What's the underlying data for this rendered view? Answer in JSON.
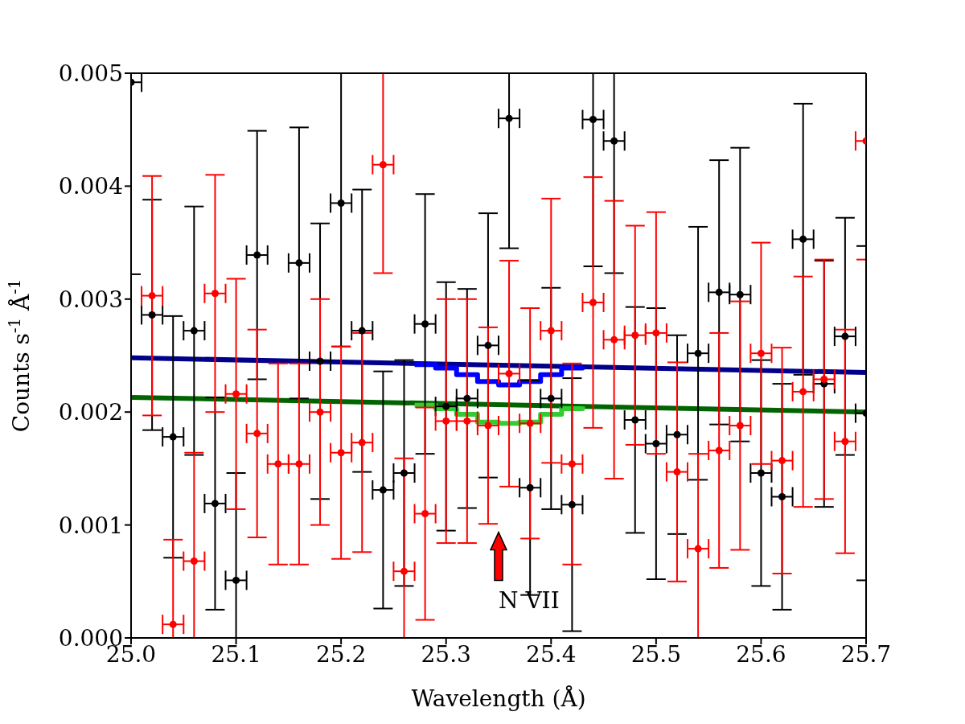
{
  "chart_data": {
    "type": "scatter",
    "xlabel": "Wavelength (Å)",
    "ylabel": "Counts s$^{-1}$ Å$^{-1}$",
    "annotations": [
      "N VII"
    ],
    "x": [
      25.0,
      25.02,
      25.04,
      25.06,
      25.08,
      25.1,
      25.12,
      25.14,
      25.16,
      25.18,
      25.2,
      25.22,
      25.24,
      25.26,
      25.28,
      25.3,
      25.32,
      25.34,
      25.36,
      25.38,
      25.4,
      25.42,
      25.44,
      25.46,
      25.48,
      25.5,
      25.52,
      25.54,
      25.56,
      25.58,
      25.6,
      25.62,
      25.64,
      25.66,
      25.68,
      25.7
    ],
    "series": [
      {
        "color": "#000000",
        "marker": "circle",
        "values": [
          0.00492,
          0.00286,
          0.00178,
          0.00272,
          0.00119,
          0.00051,
          0.00339,
          null,
          0.00332,
          0.00245,
          0.00385,
          0.00272,
          0.00131,
          0.00146,
          0.00278,
          0.00205,
          0.00212,
          0.00259,
          0.0046,
          0.00133,
          0.00212,
          0.00118,
          0.00459,
          0.0044,
          0.00193,
          0.00172,
          0.0018,
          0.00252,
          0.00306,
          0.00304,
          0.00146,
          0.00125,
          0.00353,
          0.00225,
          0.00267,
          0.00199
        ],
        "errors": [
          0.0017,
          0.00102,
          0.00107,
          0.0011,
          0.00094,
          0.00095,
          0.0011,
          null,
          0.0012,
          0.00122,
          0.00127,
          0.00125,
          0.00105,
          0.001,
          0.00115,
          0.0011,
          0.00097,
          0.00117,
          0.00115,
          0.00095,
          0.00098,
          0.00112,
          0.0013,
          0.00117,
          0.001,
          0.0012,
          0.00088,
          0.00112,
          0.00117,
          0.0013,
          0.001,
          0.001,
          0.0012,
          0.00109,
          0.00105,
          0.00148
        ],
        "xerrors": [
          0.01,
          0.01,
          0.01,
          0.01,
          0.01,
          0.01,
          0.01,
          null,
          0.01,
          0.01,
          0.01,
          0.01,
          0.01,
          0.01,
          0.01,
          0.01,
          0.01,
          0.01,
          0.01,
          0.01,
          0.01,
          0.01,
          0.01,
          0.01,
          0.01,
          0.01,
          0.01,
          0.01,
          0.01,
          0.01,
          0.01,
          0.01,
          0.01,
          0.01,
          0.01,
          0.01
        ]
      },
      {
        "color": "#ff0000",
        "marker": "circle",
        "values": [
          null,
          0.00303,
          0.00012,
          0.00068,
          0.00305,
          0.00216,
          0.00181,
          0.00154,
          0.00154,
          0.002,
          0.00164,
          0.00173,
          0.00419,
          0.00059,
          0.0011,
          0.00192,
          0.00192,
          0.00188,
          0.00234,
          0.0019,
          0.00272,
          0.00154,
          0.00297,
          0.00264,
          0.00268,
          0.0027,
          0.00147,
          0.00079,
          0.00166,
          0.00188,
          0.00252,
          0.00157,
          0.00218,
          0.00229,
          0.00174,
          0.0044
        ],
        "errors": [
          null,
          0.00106,
          0.00075,
          0.00096,
          0.00105,
          0.00102,
          0.00092,
          0.00089,
          0.00089,
          0.001,
          0.00094,
          0.00097,
          0.00096,
          0.001,
          0.00094,
          0.00108,
          0.00108,
          0.00087,
          0.001,
          0.00102,
          0.00117,
          0.00089,
          0.00111,
          0.00123,
          0.00097,
          0.00107,
          0.00097,
          0.00084,
          0.00104,
          0.0011,
          0.00098,
          0.001,
          0.00102,
          0.00106,
          0.00099,
          0.00105
        ],
        "xerrors": [
          null,
          0.01,
          0.01,
          0.01,
          0.01,
          0.01,
          0.01,
          0.01,
          0.01,
          0.01,
          0.01,
          0.01,
          0.01,
          0.01,
          0.01,
          0.01,
          0.01,
          0.01,
          0.01,
          0.01,
          0.01,
          0.01,
          0.01,
          0.01,
          0.01,
          0.01,
          0.01,
          0.01,
          0.01,
          0.01,
          0.01,
          0.01,
          0.01,
          0.01,
          0.01,
          0.01
        ]
      },
      {
        "type": "line",
        "color": "#00008b",
        "x": [
          25.0,
          25.7
        ],
        "values": [
          0.00248,
          0.00235
        ]
      },
      {
        "type": "step",
        "color": "#0000ff",
        "x": [
          25.27,
          25.29,
          25.31,
          25.33,
          25.35,
          25.37,
          25.39,
          25.41,
          25.43
        ],
        "values": [
          0.00242,
          0.00239,
          0.00233,
          0.00227,
          0.00224,
          0.00227,
          0.00233,
          0.00239,
          0.0024
        ]
      },
      {
        "type": "line",
        "color": "#006400",
        "x": [
          25.0,
          25.7
        ],
        "values": [
          0.00213,
          0.002
        ]
      },
      {
        "type": "step",
        "color": "#32cd32",
        "x": [
          25.27,
          25.29,
          25.31,
          25.33,
          25.35,
          25.37,
          25.39,
          25.41,
          25.43
        ],
        "values": [
          0.00206,
          0.00203,
          0.00198,
          0.00191,
          0.0019,
          0.00191,
          0.00198,
          0.00203,
          0.00205
        ]
      }
    ],
    "marker": "none",
    "xlim": [
      25.0,
      25.7
    ],
    "xticks": [
      {
        "value": 25.0,
        "label": "25.0"
      },
      {
        "value": 25.1,
        "label": "25.1"
      },
      {
        "value": 25.2,
        "label": "25.2"
      },
      {
        "value": 25.3,
        "label": "25.3"
      },
      {
        "value": 25.4,
        "label": "25.4"
      },
      {
        "value": 25.5,
        "label": "25.5"
      },
      {
        "value": 25.6,
        "label": "25.6"
      },
      {
        "value": 25.7,
        "label": "25.7"
      }
    ],
    "ylim": [
      0,
      0.005
    ],
    "yticks": [
      {
        "value": 0,
        "label": "0.000"
      },
      {
        "value": 0.001,
        "label": "0.001"
      },
      {
        "value": 0.002,
        "label": "0.002"
      },
      {
        "value": 0.003,
        "label": "0.003"
      },
      {
        "value": 0.004,
        "label": "0.004"
      },
      {
        "value": 0.005,
        "label": "0.005"
      }
    ]
  }
}
